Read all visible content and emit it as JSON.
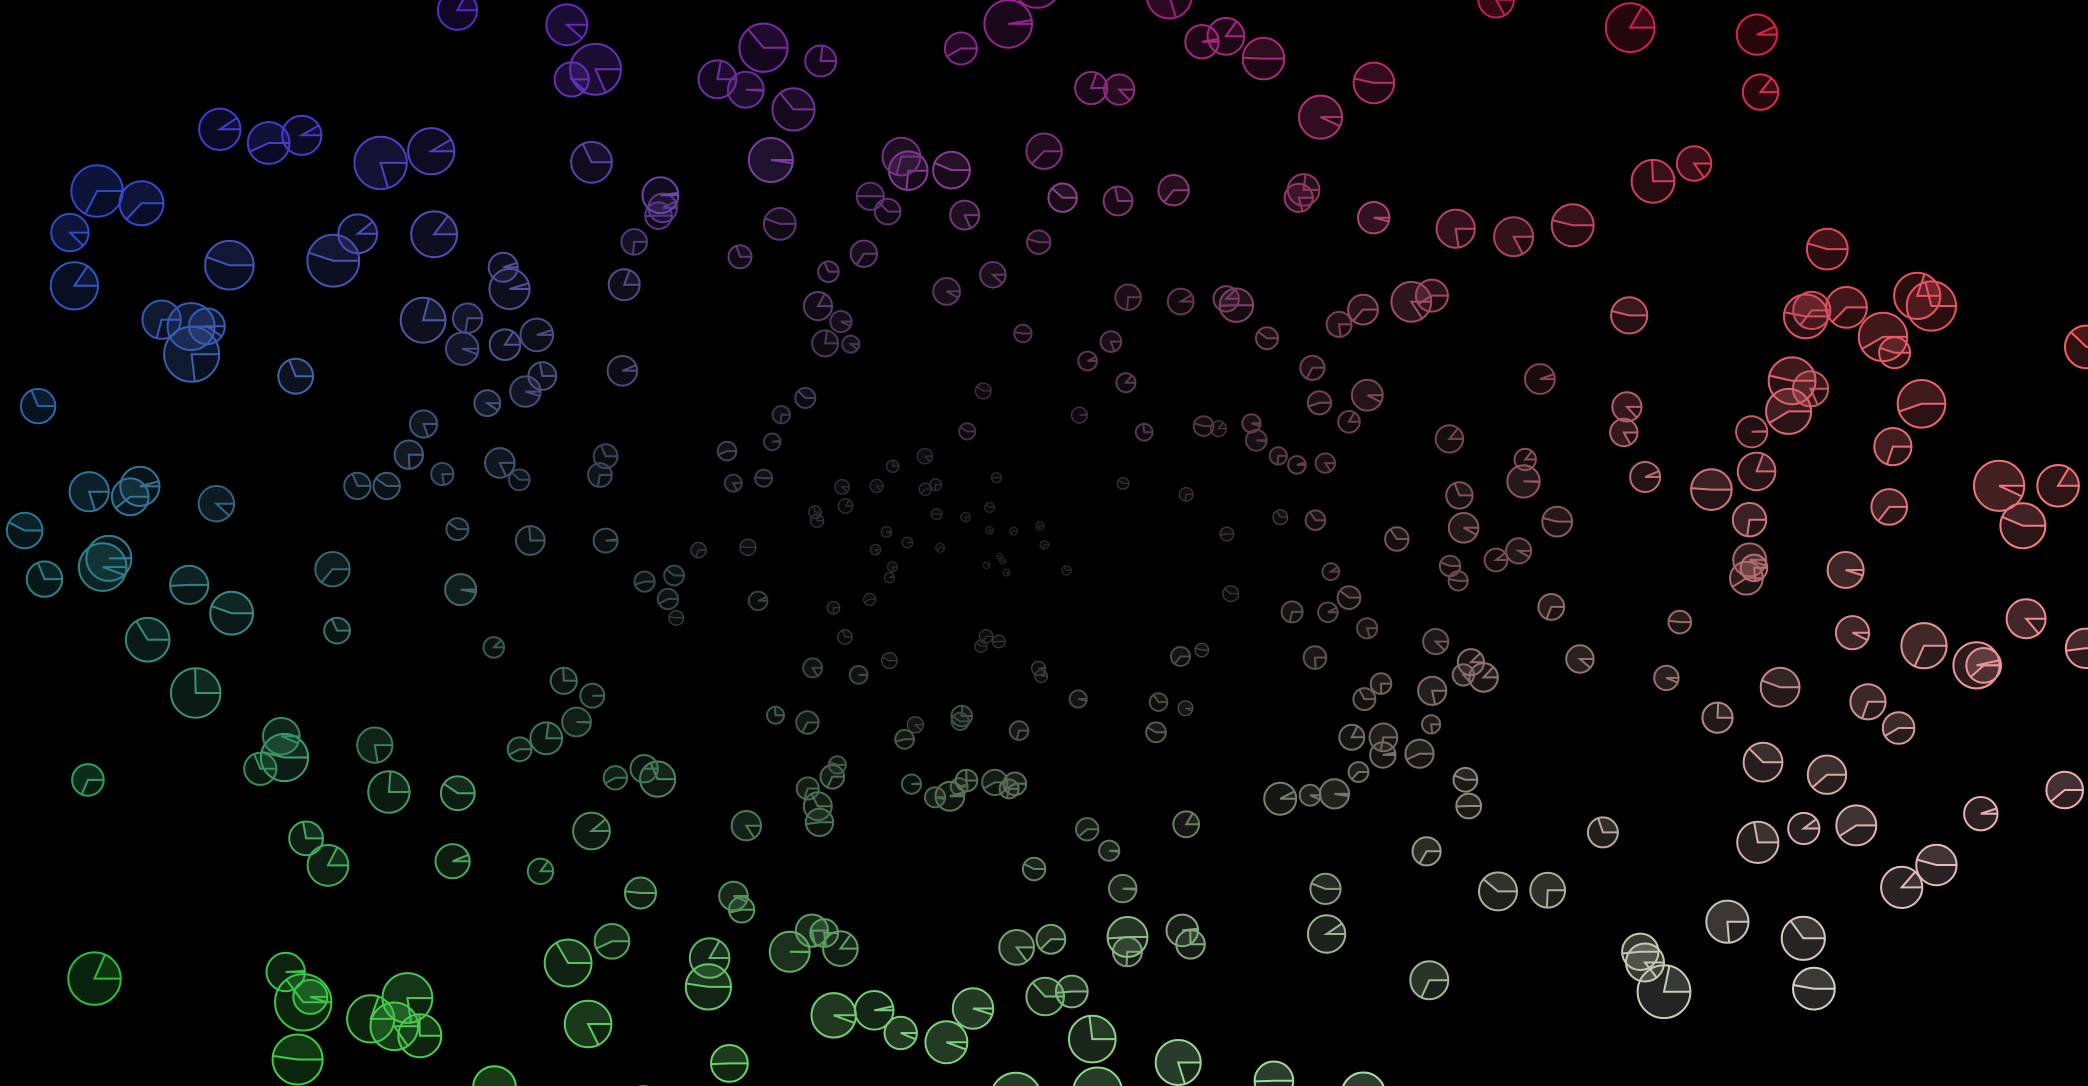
{
  "scene": {
    "background": "#000000",
    "mark_shape": "clock-circle-with-wedge",
    "corner_colors": {
      "top_left": "#2a2aff",
      "top_right": "#ff1a1a",
      "bottom_left": "#1fd01f",
      "bottom_right": "#f0e4f0"
    },
    "accent_colors": [
      "#3b3bff",
      "#8a3cff",
      "#d040e0",
      "#40c8d8",
      "#7fa0ff"
    ]
  }
}
